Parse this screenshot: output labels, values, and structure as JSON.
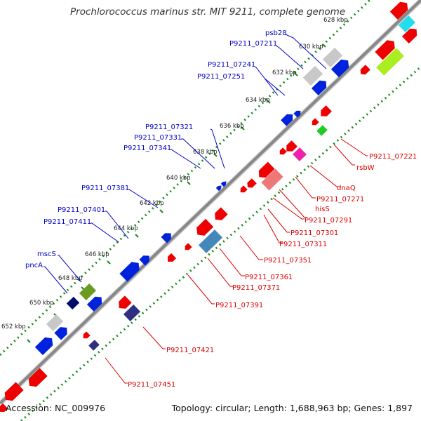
{
  "title": "Prochlorococcus marinus str. MIT 9211, complete genome",
  "footer": {
    "accession": "Accession: NC_009976",
    "summary": "Topology: circular; Length: 1,688,963 bp; Genes: 1,897"
  },
  "colors": {
    "backbone": "#808080",
    "forward_label": "#0000cc",
    "reverse_label": "#dd0000",
    "forward_gene": "#0022dd",
    "reverse_gene": "#ee0000",
    "dotted_track": "#1a8a1a"
  },
  "ticks": [
    "628 kbp",
    "630 kbp",
    "632 kbp",
    "634 kbp",
    "636 kbp",
    "638 kbp",
    "640 kbp",
    "642 kbp",
    "644 kbp",
    "646 kbp",
    "648 kbp",
    "650 kbp",
    "652 kbp"
  ],
  "forward_labels": [
    "psb28",
    "P9211_07211",
    "P9211_07241",
    "P9211_07251",
    "P9211_07321",
    "P9211_07331",
    "P9211_07341",
    "P9211_07381",
    "P9211_07401",
    "P9211_07411",
    "mscS",
    "pncA"
  ],
  "reverse_labels": [
    "P9211_07221",
    "rsbW",
    "dnaQ",
    "P9211_07271",
    "hisS",
    "P9211_07291",
    "P9211_07301",
    "P9211_07311",
    "P9211_07351",
    "P9211_07361",
    "P9211_07371",
    "P9211_07391",
    "P9211_07421",
    "P9211_07451"
  ]
}
